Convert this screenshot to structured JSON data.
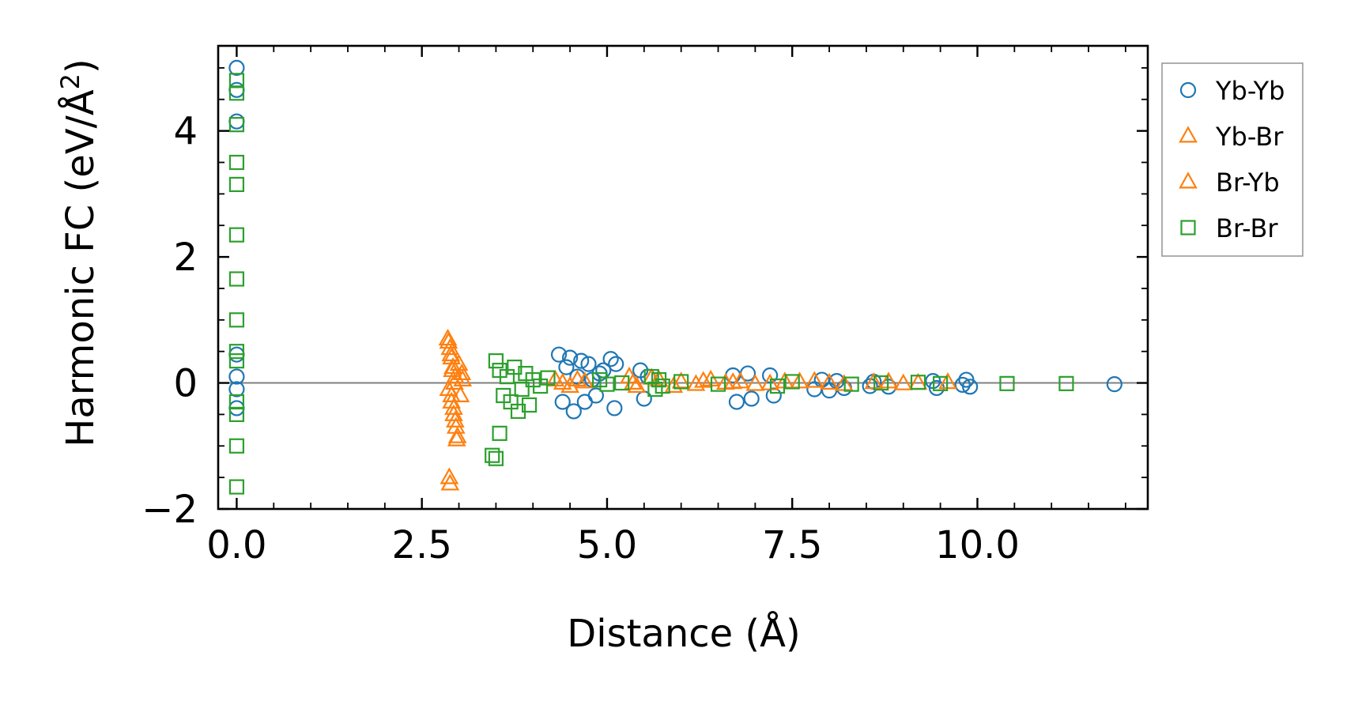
{
  "chart_data": {
    "type": "scatter",
    "title": "",
    "xlabel": "Distance (Å)",
    "ylabel_main": "Harmonic FC (eV/Å",
    "ylabel_sup": "2",
    "ylabel_close": ")",
    "xlim": [
      -0.25,
      12.3
    ],
    "ylim": [
      -2.0,
      5.35
    ],
    "xticks": [
      0.0,
      2.5,
      5.0,
      7.5,
      10.0
    ],
    "xtick_labels": [
      "0.0",
      "2.5",
      "5.0",
      "7.5",
      "10.0"
    ],
    "yticks": [
      -2,
      0,
      2,
      4
    ],
    "ytick_labels": [
      "−2",
      "0",
      "2",
      "4"
    ],
    "zero_line": true,
    "legend_position": "outside-right-top",
    "series": [
      {
        "name": "Yb-Yb",
        "marker": "circle",
        "color": "#1f77b4",
        "points": [
          [
            0,
            5.0
          ],
          [
            0,
            4.65
          ],
          [
            0,
            4.15
          ],
          [
            0,
            0.45
          ],
          [
            0,
            0.1
          ],
          [
            0,
            -0.1
          ],
          [
            0,
            -0.4
          ],
          [
            4.35,
            0.45
          ],
          [
            4.4,
            -0.3
          ],
          [
            4.45,
            0.25
          ],
          [
            4.5,
            0.4
          ],
          [
            4.55,
            -0.45
          ],
          [
            4.6,
            0.1
          ],
          [
            4.65,
            0.35
          ],
          [
            4.7,
            -0.3
          ],
          [
            4.75,
            0.3
          ],
          [
            4.8,
            0.05
          ],
          [
            4.85,
            -0.2
          ],
          [
            4.9,
            0.15
          ],
          [
            4.95,
            0.2
          ],
          [
            5.05,
            0.38
          ],
          [
            5.1,
            -0.4
          ],
          [
            5.12,
            0.3
          ],
          [
            5.45,
            0.2
          ],
          [
            5.5,
            -0.25
          ],
          [
            5.55,
            0.1
          ],
          [
            6.7,
            0.12
          ],
          [
            6.75,
            -0.3
          ],
          [
            6.9,
            0.15
          ],
          [
            6.95,
            -0.25
          ],
          [
            7.2,
            0.12
          ],
          [
            7.25,
            -0.2
          ],
          [
            7.8,
            -0.1
          ],
          [
            7.9,
            0.05
          ],
          [
            8.0,
            -0.12
          ],
          [
            8.1,
            0.03
          ],
          [
            8.2,
            -0.08
          ],
          [
            8.55,
            -0.05
          ],
          [
            8.6,
            0.02
          ],
          [
            8.8,
            -0.06
          ],
          [
            9.4,
            0.03
          ],
          [
            9.45,
            -0.08
          ],
          [
            9.8,
            -0.03
          ],
          [
            9.85,
            0.05
          ],
          [
            9.9,
            -0.06
          ],
          [
            11.85,
            -0.02
          ]
        ]
      },
      {
        "name": "Yb-Br",
        "marker": "triangle",
        "color": "#ff7f0e",
        "points": [
          [
            2.85,
            0.7
          ],
          [
            2.88,
            0.55
          ],
          [
            2.9,
            0.4
          ],
          [
            2.92,
            0.25
          ],
          [
            2.95,
            0.1
          ],
          [
            2.86,
            -0.1
          ],
          [
            2.9,
            -0.3
          ],
          [
            2.93,
            -0.5
          ],
          [
            2.96,
            -0.7
          ],
          [
            2.98,
            -0.85
          ],
          [
            2.87,
            -1.5
          ],
          [
            3.0,
            0.3
          ],
          [
            3.02,
            -0.2
          ],
          [
            3.05,
            0.05
          ],
          [
            4.3,
            0.05
          ],
          [
            4.5,
            -0.05
          ],
          [
            4.7,
            0.02
          ],
          [
            5.3,
            0.1
          ],
          [
            5.4,
            -0.05
          ],
          [
            5.7,
            0.05
          ],
          [
            6.0,
            0.02
          ],
          [
            6.2,
            -0.02
          ],
          [
            6.4,
            0.05
          ],
          [
            6.6,
            0.0
          ],
          [
            6.8,
            0.02
          ],
          [
            7.0,
            -0.02
          ],
          [
            7.4,
            0.02
          ],
          [
            7.8,
            0.03
          ],
          [
            8.2,
            -0.02
          ],
          [
            8.8,
            0.02
          ],
          [
            9.2,
            0.0
          ]
        ]
      },
      {
        "name": "Br-Yb",
        "marker": "triangle",
        "color": "#ff7f0e",
        "points": [
          [
            2.86,
            0.65
          ],
          [
            2.89,
            0.45
          ],
          [
            2.91,
            0.2
          ],
          [
            2.94,
            0.0
          ],
          [
            2.9,
            -0.2
          ],
          [
            2.93,
            -0.4
          ],
          [
            2.95,
            -0.6
          ],
          [
            2.97,
            -0.9
          ],
          [
            2.88,
            -1.6
          ],
          [
            3.04,
            0.15
          ],
          [
            4.4,
            0.0
          ],
          [
            4.6,
            0.05
          ],
          [
            5.35,
            0.0
          ],
          [
            5.6,
            0.08
          ],
          [
            5.9,
            -0.05
          ],
          [
            6.3,
            0.03
          ],
          [
            6.7,
            0.01
          ],
          [
            7.2,
            -0.01
          ],
          [
            7.6,
            0.02
          ],
          [
            8.0,
            0.0
          ],
          [
            8.6,
            0.01
          ],
          [
            9.0,
            -0.01
          ],
          [
            9.6,
            0.01
          ]
        ]
      },
      {
        "name": "Br-Br",
        "marker": "square",
        "color": "#2ca02c",
        "points": [
          [
            0,
            4.8
          ],
          [
            0,
            4.6
          ],
          [
            0,
            4.1
          ],
          [
            0,
            3.5
          ],
          [
            0,
            3.15
          ],
          [
            0,
            2.35
          ],
          [
            0,
            1.65
          ],
          [
            0,
            1.0
          ],
          [
            0,
            0.5
          ],
          [
            0,
            0.35
          ],
          [
            0,
            -0.3
          ],
          [
            0,
            -0.5
          ],
          [
            0,
            -1.0
          ],
          [
            0,
            -1.65
          ],
          [
            3.45,
            -1.15
          ],
          [
            3.5,
            -1.2
          ],
          [
            3.55,
            -0.8
          ],
          [
            3.5,
            0.35
          ],
          [
            3.55,
            0.2
          ],
          [
            3.6,
            -0.2
          ],
          [
            3.65,
            0.1
          ],
          [
            3.7,
            -0.3
          ],
          [
            3.75,
            0.25
          ],
          [
            3.8,
            -0.45
          ],
          [
            3.85,
            -0.1
          ],
          [
            3.9,
            0.15
          ],
          [
            3.95,
            -0.35
          ],
          [
            4.0,
            0.05
          ],
          [
            4.1,
            -0.05
          ],
          [
            4.2,
            0.08
          ],
          [
            4.9,
            0.05
          ],
          [
            5.0,
            -0.02
          ],
          [
            5.2,
            0.0
          ],
          [
            5.6,
            0.1
          ],
          [
            5.65,
            -0.1
          ],
          [
            5.7,
            0.05
          ],
          [
            5.75,
            -0.05
          ],
          [
            6.0,
            0.02
          ],
          [
            6.5,
            -0.02
          ],
          [
            7.3,
            -0.05
          ],
          [
            7.5,
            0.02
          ],
          [
            8.3,
            -0.02
          ],
          [
            8.7,
            0.0
          ],
          [
            9.2,
            0.01
          ],
          [
            9.5,
            -0.01
          ],
          [
            10.4,
            -0.01
          ],
          [
            11.2,
            -0.01
          ]
        ]
      }
    ]
  }
}
